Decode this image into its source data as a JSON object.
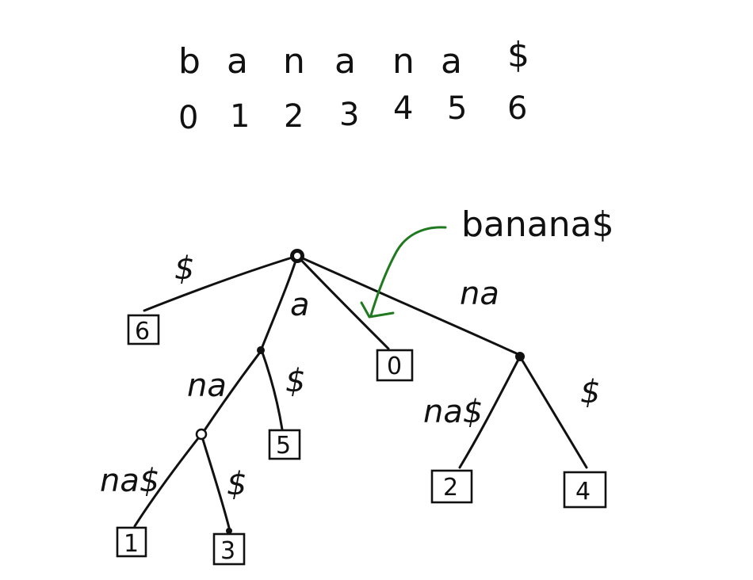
{
  "string": {
    "chars": [
      "b",
      "a",
      "n",
      "a",
      "n",
      "a",
      "$"
    ],
    "indices": [
      "0",
      "1",
      "2",
      "3",
      "4",
      "5",
      "6"
    ]
  },
  "annotation": {
    "text": "banana$",
    "color": "#1f7a1f"
  },
  "edges": {
    "root_to_6": "$",
    "root_to_a": "a",
    "root_to_na": "na",
    "a_to_na": "na",
    "a_to_5": "$",
    "ana_to_1": "na$",
    "ana_to_3": "$",
    "na_to_2": "na$",
    "na_to_4": "$"
  },
  "leaves": {
    "leaf_6": "6",
    "leaf_0": "0",
    "leaf_5": "5",
    "leaf_1": "1",
    "leaf_3": "3",
    "leaf_2": "2",
    "leaf_4": "4"
  }
}
